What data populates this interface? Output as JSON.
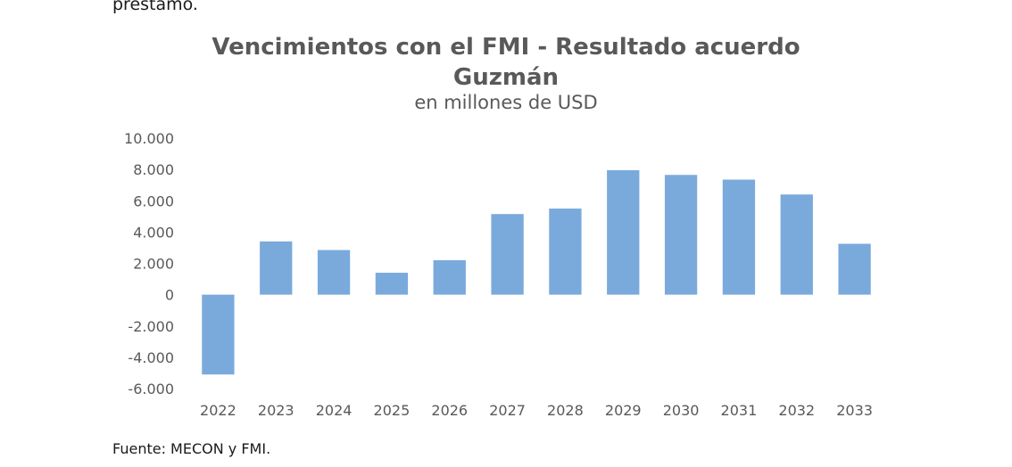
{
  "top_text": "préstamo.",
  "source": "Fuente: MECON y FMI.",
  "chart_data": {
    "type": "bar",
    "title_line1": "Vencimientos con el FMI - Resultado acuerdo",
    "title_line2": "Guzmán",
    "subtitle": "en millones de USD",
    "categories": [
      "2022",
      "2023",
      "2024",
      "2025",
      "2026",
      "2027",
      "2028",
      "2029",
      "2030",
      "2031",
      "2032",
      "2033"
    ],
    "values": [
      -5100,
      3400,
      2850,
      1400,
      2200,
      5150,
      5500,
      7950,
      7650,
      7350,
      6400,
      3250
    ],
    "yticks": [
      "10.000",
      "8.000",
      "6.000",
      "4.000",
      "2.000",
      "0",
      "-2.000",
      "-4.000",
      "-6.000"
    ],
    "ytick_values": [
      10000,
      8000,
      6000,
      4000,
      2000,
      0,
      -2000,
      -4000,
      -6000
    ],
    "ylim": [
      -6000,
      10000
    ],
    "bar_color": "#7aaadc",
    "grid": false,
    "legend": false
  }
}
